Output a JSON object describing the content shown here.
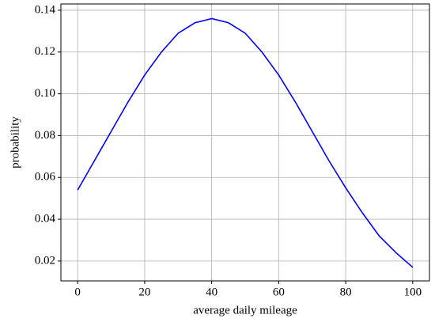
{
  "chart_data": {
    "type": "line",
    "x_label": "average daily mileage",
    "y_label": "probability",
    "x": [
      0,
      5,
      10,
      15,
      20,
      25,
      30,
      35,
      40,
      45,
      50,
      55,
      60,
      65,
      70,
      75,
      80,
      85,
      90,
      95,
      100
    ],
    "series": [
      {
        "color": "#0000ff",
        "values": [
          0.054,
          0.068,
          0.082,
          0.096,
          0.109,
          0.12,
          0.129,
          0.134,
          0.136,
          0.134,
          0.129,
          0.12,
          0.109,
          0.096,
          0.082,
          0.068,
          0.055,
          0.043,
          0.032,
          0.024,
          0.017
        ]
      }
    ],
    "xlim": [
      -5,
      105
    ],
    "xticks": [
      0,
      20,
      40,
      60,
      80,
      100
    ],
    "ylim": [
      0.0105,
      0.143
    ],
    "yticks": [
      0.02,
      0.04,
      0.06,
      0.08,
      {
        "value": 0.1,
        "label": "0.10"
      },
      0.12,
      0.14
    ],
    "grid": true
  }
}
